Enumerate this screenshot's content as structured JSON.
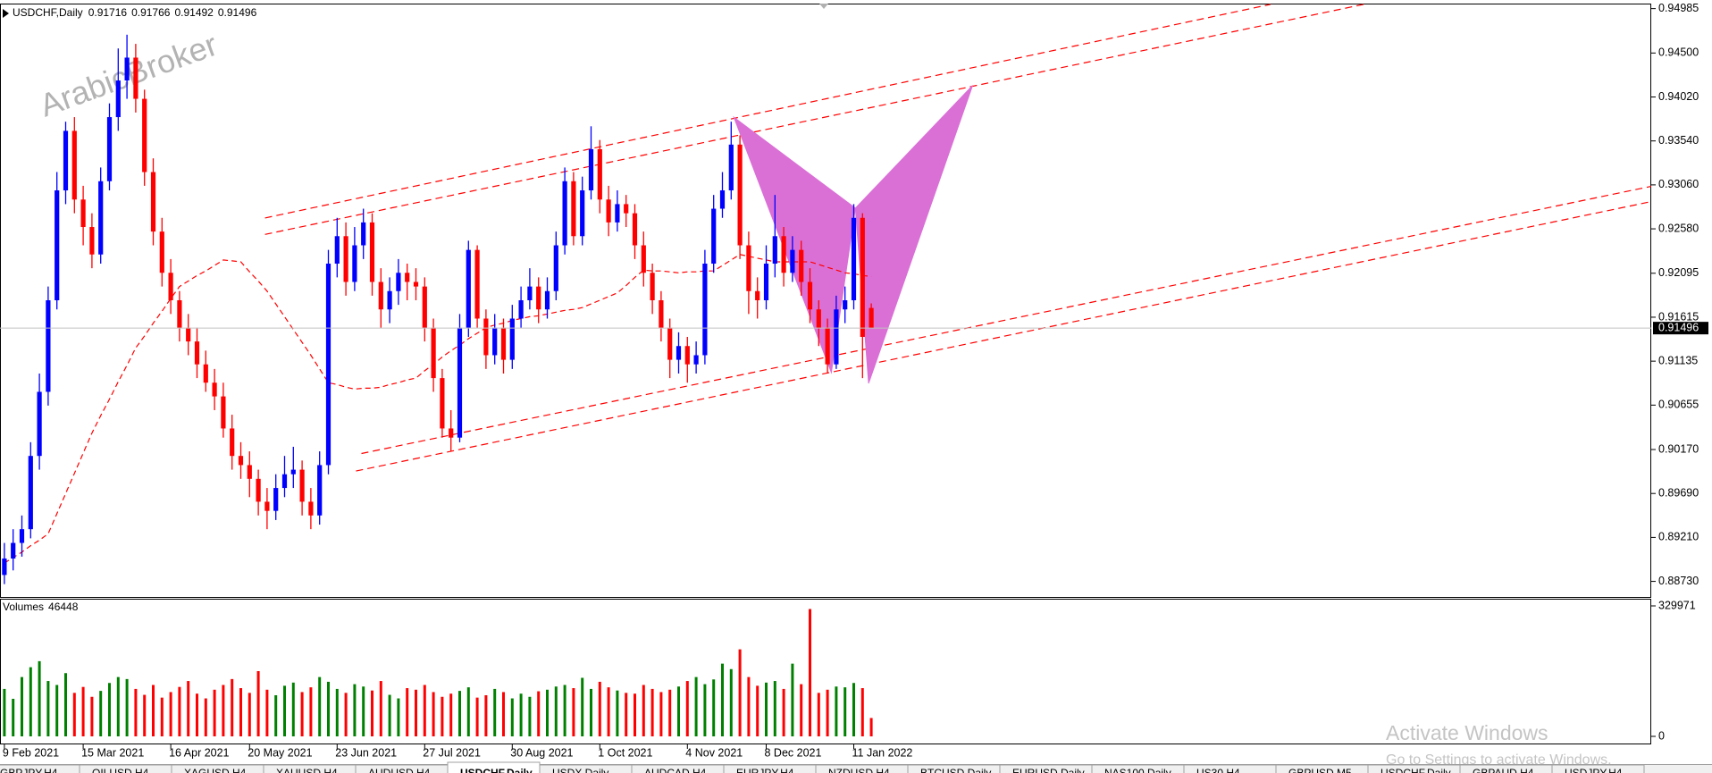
{
  "chart_data": {
    "type": "candlestick",
    "symbol": "USDCHF,Daily",
    "categories": [
      "9 Feb 2021",
      null,
      null,
      null,
      null,
      null,
      null,
      null,
      null,
      "15 Mar 2021",
      null,
      null,
      null,
      null,
      null,
      null,
      null,
      null,
      null,
      "16 Apr 2021",
      null,
      null,
      null,
      null,
      null,
      null,
      null,
      null,
      "20 May 2021",
      null,
      null,
      null,
      null,
      null,
      null,
      null,
      null,
      null,
      "23 Jun 2021",
      null,
      null,
      null,
      null,
      null,
      null,
      null,
      null,
      null,
      "27 Jul 2021",
      null,
      null,
      null,
      null,
      null,
      null,
      null,
      null,
      null,
      "30 Aug 2021",
      null,
      null,
      null,
      null,
      null,
      null,
      null,
      null,
      null,
      "1 Oct 2021",
      null,
      null,
      null,
      null,
      null,
      null,
      null,
      null,
      null,
      "4 Nov 2021",
      null,
      null,
      null,
      null,
      null,
      null,
      null,
      null,
      "8 Dec 2021",
      null,
      null,
      null,
      null,
      null,
      null,
      null,
      null,
      null,
      "11 Jan 2022",
      null,
      null
    ],
    "open": [
      0.888,
      0.8898,
      0.8915,
      0.893,
      0.901,
      0.908,
      0.918,
      0.93,
      0.9365,
      0.929,
      0.926,
      0.923,
      0.931,
      0.938,
      0.942,
      0.9445,
      0.94,
      0.932,
      0.9255,
      0.921,
      0.918,
      0.915,
      0.9135,
      0.911,
      0.909,
      0.9075,
      0.904,
      0.901,
      0.9,
      0.8985,
      0.896,
      0.895,
      0.8975,
      0.899,
      0.8995,
      0.896,
      0.8945,
      0.9,
      0.922,
      0.925,
      0.92,
      0.924,
      0.9265,
      0.92,
      0.917,
      0.919,
      0.921,
      0.92,
      0.9195,
      0.915,
      0.9095,
      0.904,
      0.903,
      0.915,
      0.9235,
      0.916,
      0.912,
      0.915,
      0.9115,
      0.916,
      0.918,
      0.9195,
      0.917,
      0.919,
      0.924,
      0.931,
      0.925,
      0.93,
      0.9345,
      0.929,
      0.9265,
      0.9285,
      0.9275,
      0.924,
      0.921,
      0.918,
      0.915,
      0.9115,
      0.913,
      0.911,
      0.912,
      0.922,
      0.928,
      0.93,
      0.935,
      0.924,
      0.919,
      0.918,
      0.922,
      0.925,
      0.921,
      0.9235,
      0.92,
      0.917,
      0.915,
      0.911,
      0.917,
      0.918,
      0.927,
      0.91716
    ],
    "high": [
      0.8915,
      0.893,
      0.8945,
      0.9025,
      0.91,
      0.9195,
      0.932,
      0.9375,
      0.938,
      0.9305,
      0.9275,
      0.9325,
      0.9395,
      0.9455,
      0.947,
      0.946,
      0.941,
      0.9335,
      0.927,
      0.9225,
      0.919,
      0.9165,
      0.915,
      0.9125,
      0.9105,
      0.909,
      0.9055,
      0.9025,
      0.9015,
      0.8995,
      0.8975,
      0.899,
      0.901,
      0.902,
      0.9005,
      0.8975,
      0.9015,
      0.9235,
      0.927,
      0.9265,
      0.926,
      0.928,
      0.9275,
      0.9215,
      0.9205,
      0.9225,
      0.922,
      0.9215,
      0.9205,
      0.916,
      0.9105,
      0.906,
      0.9165,
      0.9245,
      0.924,
      0.917,
      0.9165,
      0.916,
      0.9175,
      0.9195,
      0.9215,
      0.9205,
      0.9205,
      0.9255,
      0.9325,
      0.932,
      0.9315,
      0.937,
      0.9355,
      0.9305,
      0.93,
      0.9295,
      0.9285,
      0.9255,
      0.922,
      0.919,
      0.916,
      0.9145,
      0.914,
      0.9135,
      0.9235,
      0.9295,
      0.932,
      0.9375,
      0.936,
      0.9255,
      0.9205,
      0.924,
      0.9295,
      0.926,
      0.925,
      0.9245,
      0.9215,
      0.918,
      0.916,
      0.9185,
      0.9195,
      0.9285,
      0.9275,
      0.91766
    ],
    "low": [
      0.887,
      0.8885,
      0.89,
      0.892,
      0.8995,
      0.9065,
      0.917,
      0.9285,
      0.9275,
      0.924,
      0.9215,
      0.922,
      0.93,
      0.9365,
      0.94,
      0.9385,
      0.9305,
      0.924,
      0.9195,
      0.9165,
      0.9135,
      0.912,
      0.9095,
      0.908,
      0.906,
      0.903,
      0.8995,
      0.8985,
      0.8965,
      0.8945,
      0.893,
      0.894,
      0.8965,
      0.8975,
      0.8945,
      0.893,
      0.8935,
      0.899,
      0.9205,
      0.9185,
      0.919,
      0.9225,
      0.9185,
      0.915,
      0.9155,
      0.9175,
      0.918,
      0.918,
      0.9135,
      0.908,
      0.903,
      0.9015,
      0.9025,
      0.914,
      0.915,
      0.9105,
      0.911,
      0.91,
      0.9105,
      0.915,
      0.917,
      0.9155,
      0.916,
      0.918,
      0.923,
      0.924,
      0.924,
      0.929,
      0.9275,
      0.925,
      0.9255,
      0.926,
      0.9225,
      0.9195,
      0.9165,
      0.9135,
      0.9095,
      0.91,
      0.909,
      0.91,
      0.911,
      0.921,
      0.927,
      0.929,
      0.9225,
      0.9165,
      0.916,
      0.917,
      0.9205,
      0.9195,
      0.92,
      0.9185,
      0.9155,
      0.913,
      0.91,
      0.9105,
      0.9155,
      0.917,
      0.9095,
      0.91492
    ],
    "close": [
      0.8898,
      0.8915,
      0.893,
      0.901,
      0.908,
      0.918,
      0.93,
      0.9365,
      0.929,
      0.926,
      0.923,
      0.931,
      0.938,
      0.942,
      0.9445,
      0.94,
      0.932,
      0.9255,
      0.921,
      0.918,
      0.915,
      0.9135,
      0.911,
      0.909,
      0.9075,
      0.904,
      0.901,
      0.9,
      0.8985,
      0.896,
      0.895,
      0.8975,
      0.899,
      0.8995,
      0.896,
      0.8945,
      0.9,
      0.922,
      0.925,
      0.92,
      0.924,
      0.9265,
      0.92,
      0.917,
      0.919,
      0.921,
      0.92,
      0.9195,
      0.915,
      0.9095,
      0.904,
      0.903,
      0.915,
      0.9235,
      0.916,
      0.912,
      0.915,
      0.9115,
      0.916,
      0.918,
      0.9195,
      0.917,
      0.919,
      0.924,
      0.931,
      0.925,
      0.93,
      0.9345,
      0.929,
      0.9265,
      0.9285,
      0.9275,
      0.924,
      0.921,
      0.918,
      0.915,
      0.9115,
      0.913,
      0.911,
      0.912,
      0.922,
      0.928,
      0.93,
      0.935,
      0.924,
      0.919,
      0.918,
      0.922,
      0.925,
      0.921,
      0.9235,
      0.92,
      0.917,
      0.915,
      0.911,
      0.917,
      0.918,
      0.927,
      0.914,
      0.91496
    ],
    "up_color": "#0000ff",
    "down_color": "#ff0000",
    "ma": {
      "color": "#ff0000",
      "values": [
        0.8893,
        0.8899,
        0.8905,
        0.8912,
        0.8918,
        0.8925,
        0.8947,
        0.8969,
        0.8991,
        0.9013,
        0.9035,
        0.9054,
        0.9072,
        0.9091,
        0.9109,
        0.9128,
        0.9141,
        0.9155,
        0.9168,
        0.9182,
        0.9195,
        0.9201,
        0.9207,
        0.9212,
        0.9218,
        0.9224,
        0.9223,
        0.9222,
        0.9211,
        0.9201,
        0.919,
        0.9176,
        0.9162,
        0.9148,
        0.9134,
        0.912,
        0.9105,
        0.909,
        0.9088,
        0.9085,
        0.9083,
        0.9084,
        0.9084,
        0.9085,
        0.9088,
        0.909,
        0.9093,
        0.9095,
        0.9103,
        0.911,
        0.9118,
        0.9125,
        0.9131,
        0.9138,
        0.9144,
        0.915,
        0.9153,
        0.9155,
        0.9158,
        0.916,
        0.9162,
        0.9163,
        0.9165,
        0.9167,
        0.9169,
        0.917,
        0.9172,
        0.9176,
        0.918,
        0.9184,
        0.9188,
        0.9196,
        0.9205,
        0.9213,
        0.9212,
        0.9212,
        0.9211,
        0.921,
        0.9211,
        0.9211,
        0.9212,
        0.9212,
        0.9218,
        0.9224,
        0.923,
        0.9228,
        0.9226,
        0.9224,
        0.9222,
        0.9222,
        0.9222,
        0.9222,
        0.9222,
        0.9219,
        0.9216,
        0.9213,
        0.921,
        0.9209,
        0.9207,
        0.9206
      ]
    },
    "ylim": [
      0.8856,
      0.9504
    ],
    "yticks": [
      0.94985,
      {
        "value": 0.945,
        "label": "0.94500"
      },
      {
        "value": 0.9402,
        "label": "0.94020"
      },
      {
        "value": 0.9354,
        "label": "0.93540"
      },
      {
        "value": 0.9306,
        "label": "0.93060"
      },
      {
        "value": 0.9258,
        "label": "0.92580"
      },
      0.92095,
      0.91615,
      0.91135,
      0.90655,
      {
        "value": 0.9017,
        "label": "0.90170"
      },
      {
        "value": 0.8969,
        "label": "0.89690"
      },
      {
        "value": 0.8921,
        "label": "0.89210"
      },
      {
        "value": 0.8873,
        "label": "0.88730"
      }
    ],
    "grid": false,
    "volume": {
      "title": "Volumes",
      "up_color": "#008000",
      "down_color": "#ff0000",
      "ylim": [
        0,
        329971
      ],
      "yticks": [
        0,
        329971
      ],
      "values": [
        120000,
        95000,
        150000,
        175000,
        190000,
        140000,
        130000,
        160000,
        110000,
        125000,
        100000,
        115000,
        135000,
        150000,
        145000,
        120000,
        105000,
        130000,
        98000,
        112000,
        125000,
        140000,
        108000,
        96000,
        118000,
        130000,
        145000,
        122000,
        110000,
        165000,
        118000,
        104000,
        128000,
        136000,
        112000,
        124000,
        150000,
        138000,
        120000,
        110000,
        132000,
        126000,
        116000,
        140000,
        105000,
        96000,
        122000,
        118000,
        130000,
        112000,
        100000,
        108000,
        115000,
        124000,
        98000,
        104000,
        120000,
        112000,
        96000,
        108000,
        100000,
        114000,
        118000,
        126000,
        130000,
        122000,
        148000,
        120000,
        138000,
        124000,
        116000,
        110000,
        108000,
        130000,
        120000,
        112000,
        118000,
        126000,
        140000,
        150000,
        132000,
        144000,
        184000,
        170000,
        220000,
        150000,
        128000,
        136000,
        140000,
        120000,
        184000,
        132000,
        322000,
        110000,
        118000,
        126000,
        124000,
        135000,
        122000,
        46448
      ]
    }
  },
  "watermark": "ArabicBroker",
  "windows_notice": {
    "title": "Activate Windows",
    "text": "Go to Settings to activate Windows."
  },
  "tabs": [
    "GBPJPY,H4",
    "OILUSD,H4",
    "XAGUSD,H4",
    "XAUUSD,H4",
    "AUDUSD,H4",
    "USDCHF,Daily",
    "USDX,Daily",
    "AUDCAD,H4",
    "EURJPY,H4",
    "NZDUSD,H4",
    "BTCUSD,Daily",
    "EURUSD,Daily",
    "NAS100,Daily",
    "US30,H4",
    "GBPUSD,M5",
    "USDCHF,Daily",
    "GBPAUD,H4",
    "USDJPY,H4"
  ],
  "active_tab": 5
}
